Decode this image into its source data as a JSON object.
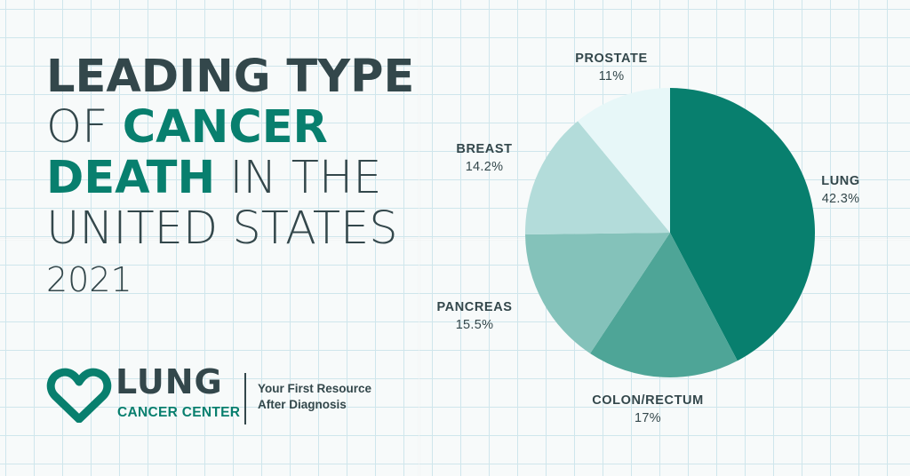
{
  "title": {
    "line1": "LEADING TYPE",
    "line2_pre": "OF ",
    "line2_em": "CANCER",
    "line3_em": "DEATH",
    "line3_post": " IN THE",
    "line4": "UNITED STATES",
    "year": "2021"
  },
  "logo": {
    "word": "LUNG",
    "sub": "CANCER CENTER",
    "tagline_line1": "Your First Resource",
    "tagline_line2": "After Diagnosis"
  },
  "chart_data": {
    "type": "pie",
    "title": "",
    "slices": [
      {
        "label": "LUNG",
        "value": 42.3,
        "display": "42.3%",
        "color": "#087f6e"
      },
      {
        "label": "COLON/RECTUM",
        "value": 17,
        "display": "17%",
        "color": "#4ea597"
      },
      {
        "label": "PANCREAS",
        "value": 15.5,
        "display": "15.5%",
        "color": "#84c2ba"
      },
      {
        "label": "BREAST",
        "value": 14.2,
        "display": "14.2%",
        "color": "#b3dcda"
      },
      {
        "label": "PROSTATE",
        "value": 11,
        "display": "11%",
        "color": "#e7f7f8"
      }
    ],
    "start": "12 o'clock",
    "direction": "clockwise"
  }
}
